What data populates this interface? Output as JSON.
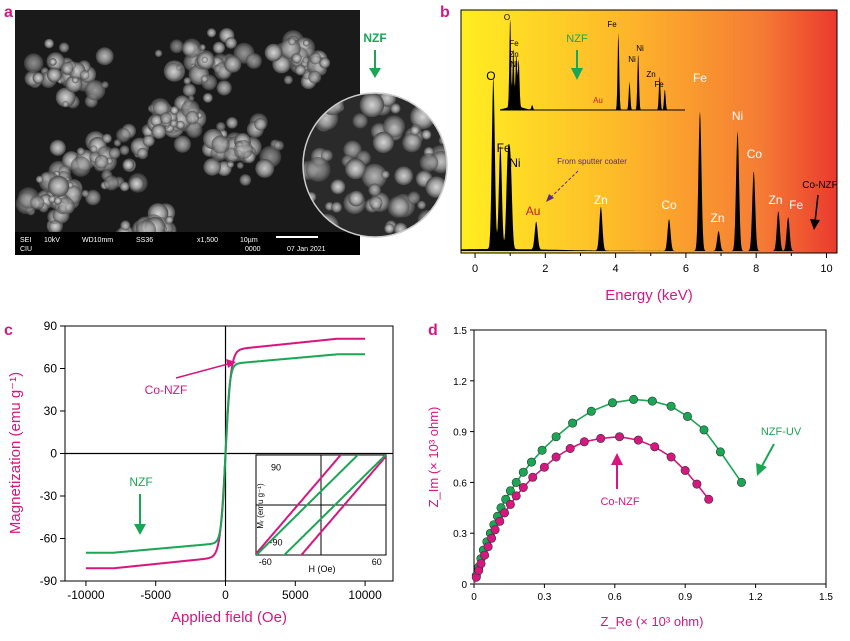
{
  "panels": {
    "a": {
      "letter": "a",
      "sample_label": "NZF",
      "sem_footer": {
        "mode": "SEI",
        "kv": "10kV",
        "wd": "WD10mm",
        "ss": "SS36",
        "mag": "x1,500",
        "scale": "10µm",
        "date": "07 Jan 2021",
        "org": "CIU",
        "num": "0000"
      }
    },
    "b": {
      "letter": "b"
    },
    "c": {
      "letter": "c"
    },
    "d": {
      "letter": "d"
    }
  },
  "colors": {
    "magenta": "#d6177f",
    "green": "#1aa655",
    "axis": "#000000"
  },
  "chart_data": [
    {
      "panel": "b",
      "type": "line",
      "title": "",
      "xlabel": "Energy (keV)",
      "ylabel": "",
      "xlim": [
        -0.4,
        10.3
      ],
      "xticks": [
        0,
        2,
        4,
        6,
        8,
        10
      ],
      "background": "gradient-yellow-to-red",
      "series": [
        {
          "name": "Co-NZF",
          "peaks": [
            {
              "x": 0.52,
              "h": 0.86
            },
            {
              "x": 0.72,
              "h": 0.52
            },
            {
              "x": 0.93,
              "h": 0.42
            },
            {
              "x": 1.01,
              "h": 0.4
            },
            {
              "x": 1.74,
              "h": 0.14
            },
            {
              "x": 3.58,
              "h": 0.22
            },
            {
              "x": 5.52,
              "h": 0.16
            },
            {
              "x": 6.4,
              "h": 0.7
            },
            {
              "x": 6.93,
              "h": 0.1
            },
            {
              "x": 7.47,
              "h": 0.6
            },
            {
              "x": 7.93,
              "h": 0.4
            },
            {
              "x": 8.63,
              "h": 0.2
            },
            {
              "x": 8.91,
              "h": 0.17
            }
          ],
          "peak_labels": [
            {
              "text": "O",
              "x": 0.45
            },
            {
              "text": "Fe",
              "x": 0.7
            },
            {
              "text": "Ni",
              "x": 1.02
            },
            {
              "text": "Au",
              "x": 1.65
            },
            {
              "text": "Zn",
              "x": 3.58
            },
            {
              "text": "Co",
              "x": 5.52
            },
            {
              "text": "Fe",
              "x": 6.4
            },
            {
              "text": "Zn",
              "x": 6.9
            },
            {
              "text": "Ni",
              "x": 7.47
            },
            {
              "text": "Co",
              "x": 7.95
            },
            {
              "text": "Zn",
              "x": 8.55
            },
            {
              "text": "Fe",
              "x": 8.91
            }
          ]
        },
        {
          "name": "NZF",
          "inset": true,
          "peaks": [
            {
              "x": 0.55,
              "h": 0.95
            },
            {
              "x": 0.72,
              "h": 0.62
            },
            {
              "x": 0.88,
              "h": 0.55
            },
            {
              "x": 1.01,
              "h": 0.5
            },
            {
              "x": 1.74,
              "h": 0.05
            },
            {
              "x": 6.4,
              "h": 0.82
            },
            {
              "x": 7.0,
              "h": 0.3
            },
            {
              "x": 7.47,
              "h": 0.6
            },
            {
              "x": 8.63,
              "h": 0.36
            },
            {
              "x": 8.91,
              "h": 0.22
            }
          ],
          "peak_labels": [
            {
              "text": "O",
              "x": 0.5
            },
            {
              "text": "Fe",
              "x": 0.88
            },
            {
              "text": "Zn",
              "x": 0.88
            },
            {
              "text": "Ni",
              "x": 0.88
            },
            {
              "text": "Au",
              "x": 3.5
            },
            {
              "text": "Fe",
              "x": 6.38
            },
            {
              "text": "Ni",
              "x": 7.05
            },
            {
              "text": "Ni",
              "x": 7.45
            },
            {
              "text": "Zn",
              "x": 8.45
            },
            {
              "text": "Fe",
              "x": 8.85
            }
          ]
        }
      ],
      "annotations": [
        {
          "text": "From sputter coater",
          "x": 3.2
        },
        {
          "text": "Co-NZF",
          "x": 9.75
        },
        {
          "text": "NZF",
          "x": 3.0
        }
      ]
    },
    {
      "panel": "c",
      "type": "line",
      "title": "",
      "xlabel": "Applied field (Oe)",
      "ylabel": "Magnetization (emu g⁻¹)",
      "xlim": [
        -11500,
        12000
      ],
      "ylim": [
        -90,
        90
      ],
      "xticks": [
        -10000,
        -5000,
        0,
        5000,
        10000
      ],
      "yticks": [
        -90,
        -60,
        -30,
        0,
        30,
        60,
        90
      ],
      "series": [
        {
          "name": "Co-NZF",
          "color": "magenta",
          "Ms": 81,
          "H0": 390,
          "Hc": 25
        },
        {
          "name": "NZF",
          "color": "green",
          "Ms": 70,
          "H0": 300,
          "Hc": 15
        }
      ],
      "annotations": [
        {
          "text": "Co-NZF",
          "x": -4800,
          "y": 50
        },
        {
          "text": "NZF",
          "x": -5500,
          "y": -23
        }
      ],
      "inset": {
        "xlabel": "H (Oe)",
        "ylabel": "Mᵣ (emu g⁻¹)",
        "xlim": [
          -70,
          70
        ],
        "ylim": [
          -120,
          120
        ],
        "xticks": [
          -60,
          60
        ],
        "yticks": [
          -90,
          90
        ]
      }
    },
    {
      "panel": "d",
      "type": "scatter",
      "title": "",
      "xlabel": "Z_Re (× 10³ ohm)",
      "ylabel": "Z_Im (× 10³ ohm)",
      "xlim": [
        0,
        1.5
      ],
      "ylim": [
        0,
        1.5
      ],
      "xticks": [
        0,
        0.3,
        0.6,
        0.9,
        1.2,
        1.5
      ],
      "yticks": [
        0,
        0.3,
        0.6,
        0.9,
        1.2,
        1.5
      ],
      "series": [
        {
          "name": "NZF-UV",
          "color": "green",
          "x": [
            0.01,
            0.02,
            0.03,
            0.04,
            0.055,
            0.07,
            0.085,
            0.1,
            0.115,
            0.135,
            0.155,
            0.18,
            0.21,
            0.245,
            0.29,
            0.35,
            0.42,
            0.5,
            0.59,
            0.68,
            0.76,
            0.84,
            0.91,
            0.98,
            1.05,
            1.14
          ],
          "y": [
            0.05,
            0.1,
            0.15,
            0.2,
            0.25,
            0.3,
            0.35,
            0.4,
            0.45,
            0.5,
            0.55,
            0.6,
            0.66,
            0.72,
            0.79,
            0.87,
            0.95,
            1.02,
            1.07,
            1.09,
            1.08,
            1.05,
            0.99,
            0.91,
            0.78,
            0.6
          ]
        },
        {
          "name": "Co-NZF",
          "color": "magenta",
          "x": [
            0.01,
            0.02,
            0.03,
            0.045,
            0.06,
            0.075,
            0.09,
            0.11,
            0.13,
            0.155,
            0.18,
            0.21,
            0.25,
            0.3,
            0.35,
            0.41,
            0.47,
            0.54,
            0.62,
            0.7,
            0.77,
            0.84,
            0.9,
            0.95,
            1.0
          ],
          "y": [
            0.04,
            0.08,
            0.12,
            0.17,
            0.22,
            0.27,
            0.32,
            0.37,
            0.42,
            0.47,
            0.52,
            0.57,
            0.63,
            0.69,
            0.75,
            0.8,
            0.84,
            0.86,
            0.87,
            0.85,
            0.81,
            0.75,
            0.67,
            0.59,
            0.5
          ]
        }
      ],
      "annotations": [
        {
          "text": "NZF-UV",
          "x": 1.24,
          "y": 0.82
        },
        {
          "text": "Co-NZF",
          "x": 0.62,
          "y": 0.52
        }
      ]
    }
  ]
}
